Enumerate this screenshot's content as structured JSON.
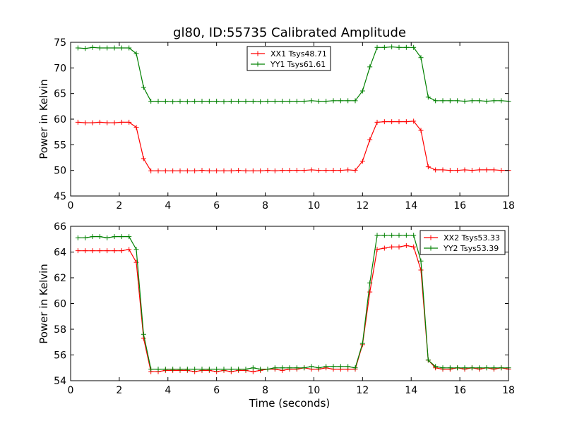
{
  "figure": {
    "title": "gl80, ID:55735 Calibrated Amplitude"
  },
  "chart_data": [
    {
      "type": "line",
      "xlabel": "",
      "ylabel": "Power in Kelvin",
      "xlim": [
        0,
        18
      ],
      "ylim": [
        45,
        75
      ],
      "xticks": [
        0,
        2,
        4,
        6,
        8,
        10,
        12,
        14,
        16,
        18
      ],
      "yticks": [
        45,
        50,
        55,
        60,
        65,
        70,
        75
      ],
      "grid": false,
      "legend_position": "top-center",
      "x": [
        0.3,
        0.6,
        0.9,
        1.2,
        1.5,
        1.8,
        2.1,
        2.4,
        2.7,
        3.0,
        3.3,
        3.6,
        3.9,
        4.2,
        4.5,
        4.8,
        5.1,
        5.4,
        5.7,
        6.0,
        6.3,
        6.6,
        6.9,
        7.2,
        7.5,
        7.8,
        8.1,
        8.4,
        8.7,
        9.0,
        9.3,
        9.6,
        9.9,
        10.2,
        10.5,
        10.8,
        11.1,
        11.4,
        11.7,
        12.0,
        12.3,
        12.6,
        12.9,
        13.2,
        13.5,
        13.8,
        14.1,
        14.4,
        14.7,
        15.0,
        15.3,
        15.6,
        15.9,
        16.2,
        16.5,
        16.8,
        17.1,
        17.4,
        17.7,
        18.0
      ],
      "series": [
        {
          "name": "XX1 Tsys48.71",
          "color": "#ff0000",
          "values": [
            59.4,
            59.3,
            59.3,
            59.4,
            59.3,
            59.3,
            59.4,
            59.4,
            58.4,
            52.3,
            49.9,
            49.9,
            49.9,
            49.9,
            49.9,
            49.9,
            49.9,
            50.0,
            49.9,
            49.9,
            49.9,
            49.9,
            50.0,
            49.9,
            49.9,
            49.9,
            50.0,
            49.9,
            50.0,
            50.0,
            50.0,
            50.0,
            50.1,
            50.0,
            50.0,
            50.0,
            50.0,
            50.1,
            50.0,
            51.8,
            56.0,
            59.4,
            59.5,
            59.5,
            59.5,
            59.5,
            59.6,
            57.8,
            50.7,
            50.1,
            50.1,
            50.0,
            50.0,
            50.1,
            50.0,
            50.1,
            50.1,
            50.1,
            50.0,
            50.0
          ]
        },
        {
          "name": "YY1 Tsys61.61",
          "color": "#008000",
          "values": [
            73.9,
            73.8,
            74.0,
            73.9,
            73.9,
            73.9,
            73.9,
            73.9,
            72.8,
            66.2,
            63.5,
            63.5,
            63.5,
            63.4,
            63.5,
            63.4,
            63.5,
            63.5,
            63.5,
            63.5,
            63.4,
            63.5,
            63.5,
            63.5,
            63.5,
            63.4,
            63.5,
            63.5,
            63.5,
            63.5,
            63.5,
            63.5,
            63.6,
            63.5,
            63.5,
            63.6,
            63.6,
            63.6,
            63.6,
            65.5,
            70.2,
            74.0,
            74.0,
            74.1,
            74.0,
            74.0,
            74.0,
            72.0,
            64.3,
            63.6,
            63.6,
            63.6,
            63.6,
            63.5,
            63.6,
            63.6,
            63.5,
            63.6,
            63.6,
            63.5
          ]
        }
      ]
    },
    {
      "type": "line",
      "xlabel": "Time (seconds)",
      "ylabel": "Power in Kelvin",
      "xlim": [
        0,
        18
      ],
      "ylim": [
        54,
        66
      ],
      "xticks": [
        0,
        2,
        4,
        6,
        8,
        10,
        12,
        14,
        16,
        18
      ],
      "yticks": [
        54,
        56,
        58,
        60,
        62,
        64,
        66
      ],
      "grid": false,
      "legend_position": "top-right",
      "x": [
        0.3,
        0.6,
        0.9,
        1.2,
        1.5,
        1.8,
        2.1,
        2.4,
        2.7,
        3.0,
        3.3,
        3.6,
        3.9,
        4.2,
        4.5,
        4.8,
        5.1,
        5.4,
        5.7,
        6.0,
        6.3,
        6.6,
        6.9,
        7.2,
        7.5,
        7.8,
        8.1,
        8.4,
        8.7,
        9.0,
        9.3,
        9.6,
        9.9,
        10.2,
        10.5,
        10.8,
        11.1,
        11.4,
        11.7,
        12.0,
        12.3,
        12.6,
        12.9,
        13.2,
        13.5,
        13.8,
        14.1,
        14.4,
        14.7,
        15.0,
        15.3,
        15.6,
        15.9,
        16.2,
        16.5,
        16.8,
        17.1,
        17.4,
        17.7,
        18.0
      ],
      "series": [
        {
          "name": "XX2 Tsys53.33",
          "color": "#ff0000",
          "values": [
            64.1,
            64.1,
            64.1,
            64.1,
            64.1,
            64.1,
            64.1,
            64.2,
            63.2,
            57.3,
            54.7,
            54.7,
            54.8,
            54.8,
            54.8,
            54.8,
            54.7,
            54.8,
            54.8,
            54.7,
            54.8,
            54.7,
            54.8,
            54.8,
            54.7,
            54.8,
            54.9,
            54.9,
            54.8,
            54.9,
            54.9,
            55.0,
            54.9,
            54.9,
            55.0,
            54.9,
            54.9,
            54.9,
            54.9,
            56.8,
            60.9,
            64.2,
            64.3,
            64.4,
            64.4,
            64.5,
            64.4,
            62.6,
            55.6,
            55.0,
            54.9,
            54.9,
            55.0,
            54.9,
            55.0,
            54.9,
            55.0,
            54.9,
            55.0,
            54.9
          ]
        },
        {
          "name": "YY2 Tsys53.39",
          "color": "#008000",
          "values": [
            65.1,
            65.1,
            65.2,
            65.2,
            65.1,
            65.2,
            65.2,
            65.2,
            64.2,
            57.6,
            54.9,
            54.9,
            54.9,
            54.9,
            54.9,
            54.9,
            54.9,
            54.9,
            54.9,
            54.9,
            54.9,
            54.9,
            54.9,
            54.9,
            55.0,
            54.9,
            54.9,
            55.0,
            55.0,
            55.0,
            55.0,
            55.0,
            55.1,
            55.0,
            55.1,
            55.1,
            55.1,
            55.1,
            55.0,
            56.9,
            61.6,
            65.3,
            65.3,
            65.3,
            65.3,
            65.3,
            65.3,
            63.3,
            55.6,
            55.1,
            55.0,
            55.0,
            55.0,
            55.0,
            55.0,
            55.0,
            55.0,
            55.0,
            55.0,
            55.0
          ]
        }
      ]
    }
  ]
}
